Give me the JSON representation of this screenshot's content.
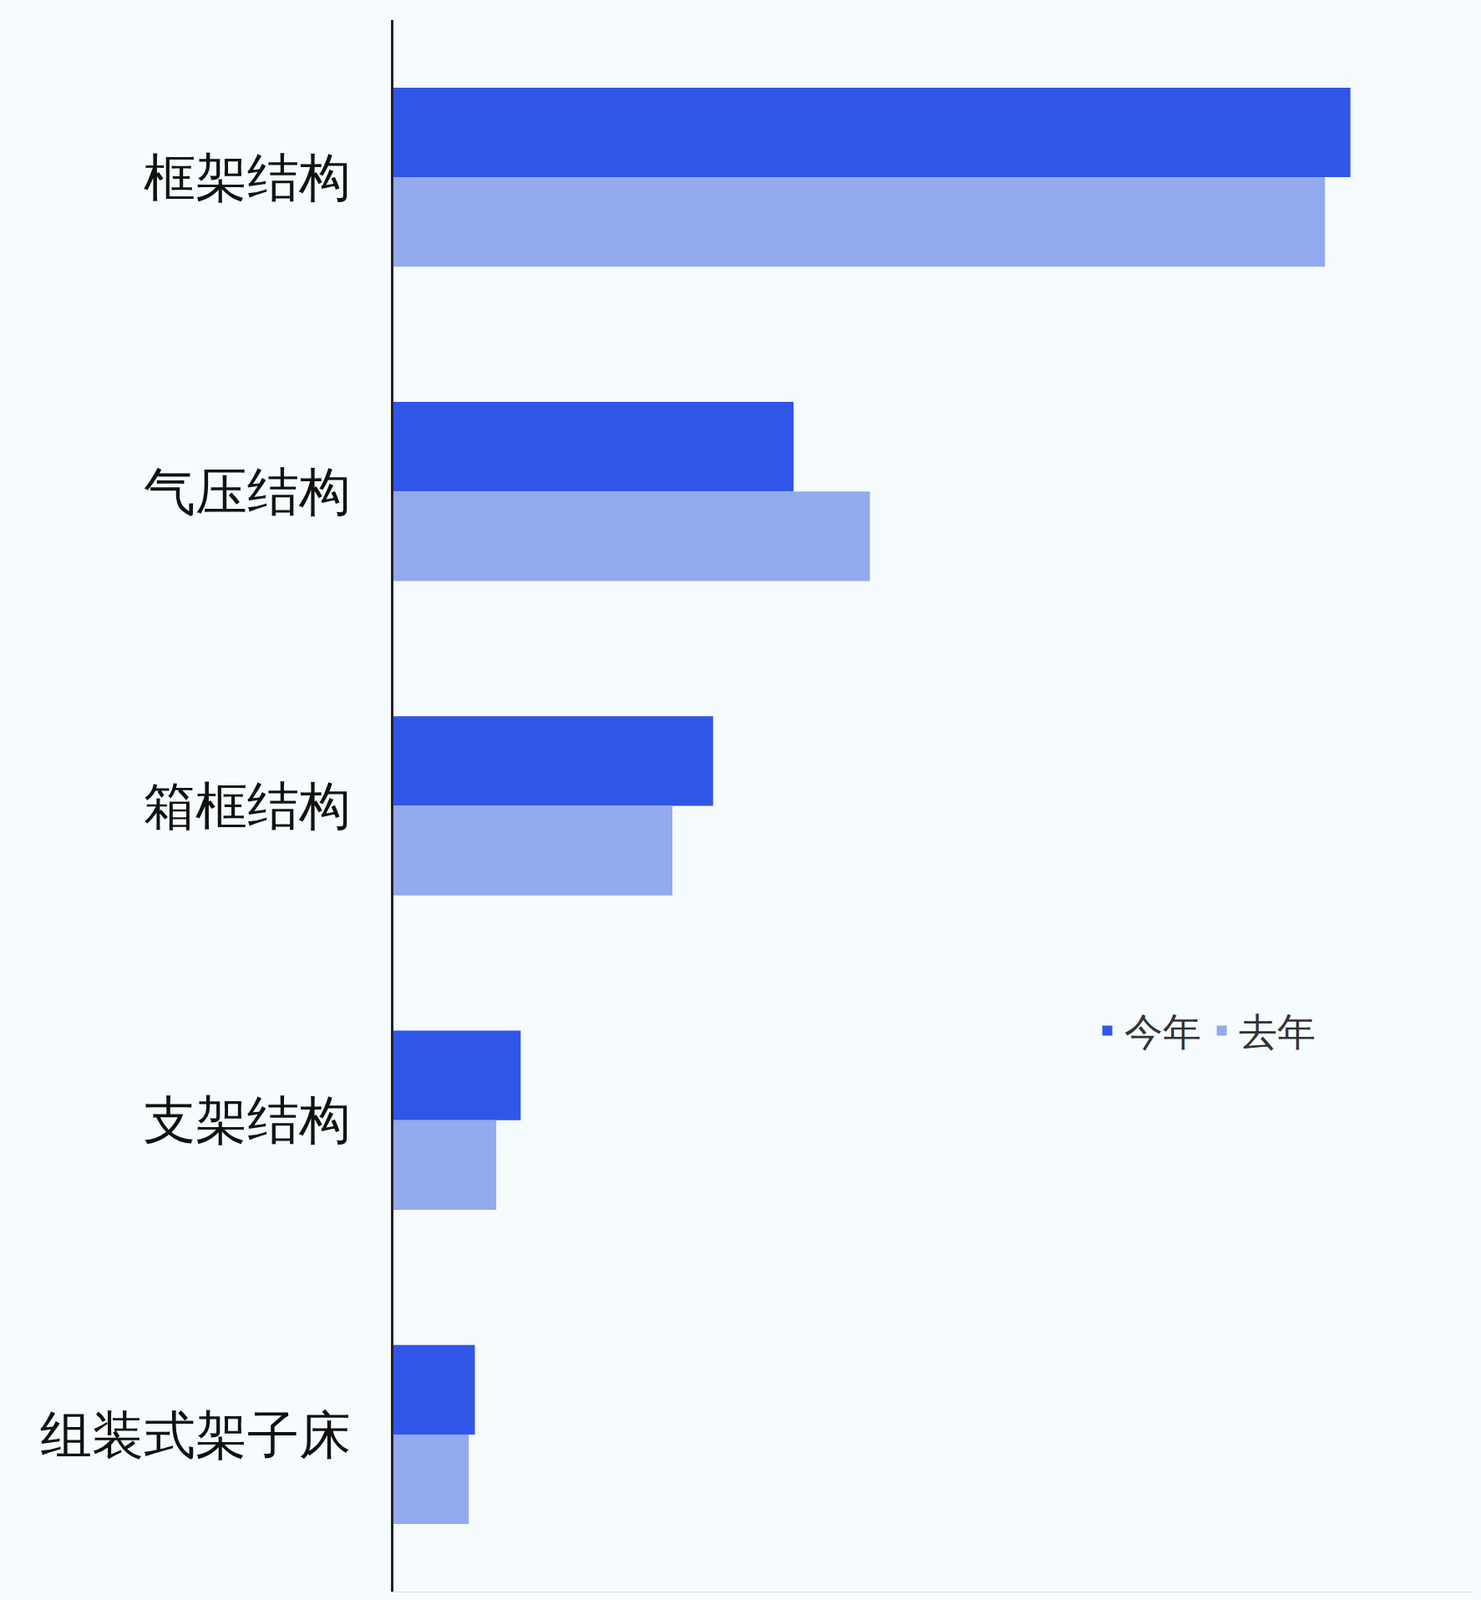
{
  "chart_data": {
    "type": "bar",
    "orientation": "horizontal",
    "categories": [
      "框架结构",
      "气压结构",
      "箱框结构",
      "支架结构",
      "组装式架子床"
    ],
    "series": [
      {
        "name": "今年",
        "color": "#3056e8",
        "values": [
          94,
          39.3,
          31.4,
          12.5,
          8
        ]
      },
      {
        "name": "去年",
        "color": "#94aaee",
        "values": [
          91.5,
          46.8,
          27.4,
          10.1,
          7.4
        ]
      }
    ],
    "xlim": [
      0,
      106
    ],
    "grid": false,
    "legend": "right",
    "tick_labels": "y"
  }
}
